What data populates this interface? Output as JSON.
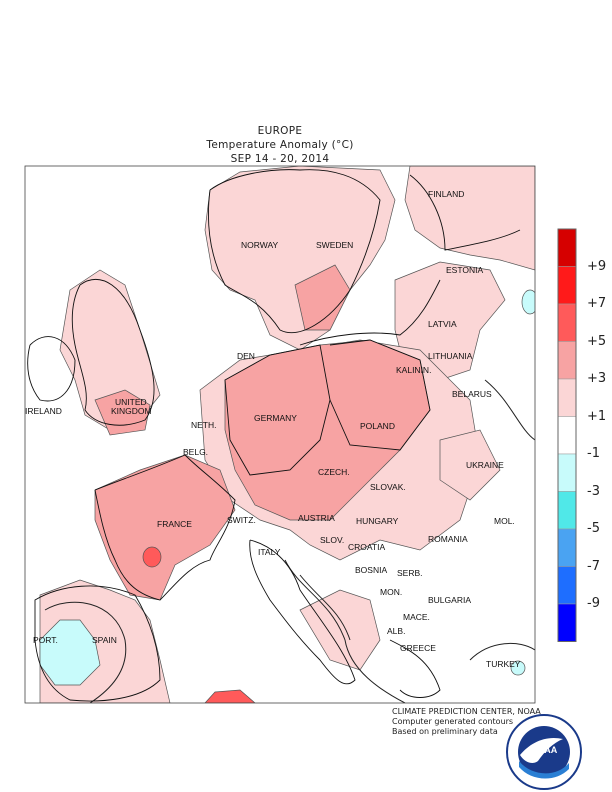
{
  "header": {
    "region": "EUROPE",
    "variable": "Temperature Anomaly (°C)",
    "period": "SEP 14 - 20, 2014"
  },
  "legend": {
    "labels": [
      "+9",
      "+7",
      "+5",
      "+3",
      "+1",
      "-1",
      "-3",
      "-5",
      "-7",
      "-9"
    ],
    "colors": [
      "#d60000",
      "#ff1a1a",
      "#ff5a5a",
      "#f7a3a3",
      "#fbd6d6",
      "#ffffff",
      "#c8fbfb",
      "#50e8e8",
      "#4aa3f2",
      "#1e6eff",
      "#0000ff"
    ]
  },
  "countries": {
    "finland": "FINLAND",
    "norway": "NORWAY",
    "sweden": "SWEDEN",
    "estonia": "ESTONIA",
    "latvia": "LATVIA",
    "lithuania": "LITHUANIA",
    "kalinin": "KALININ.",
    "denmark": "DEN",
    "ireland": "IRELAND",
    "united": "UNITED",
    "kingdom": "KINGDOM",
    "belarus": "BELARUS",
    "neth": "NETH.",
    "germany": "GERMANY",
    "poland": "POLAND",
    "belg": "BELG.",
    "ukraine": "UKRAINE",
    "czech": "CZECH.",
    "slovak": "SLOVAK.",
    "france": "FRANCE",
    "switz": "SWITZ.",
    "austria": "AUSTRIA",
    "hungary": "HUNGARY",
    "mol": "MOL.",
    "romania": "ROMANIA",
    "italy": "ITALY",
    "slov": "SLOV.",
    "croatia": "CROATIA",
    "bosnia": "BOSNIA",
    "serb": "SERB.",
    "mon": "MON.",
    "bulgaria": "BULGARIA",
    "port": "PORT.",
    "spain": "SPAIN",
    "mace": "MACE.",
    "alb": "ALB.",
    "greece": "GREECE",
    "turkey": "TURKEY"
  },
  "credits": {
    "line1": "CLIMATE PREDICTION CENTER, NOAA",
    "line2": "Computer generated contours",
    "line3": "Based on preliminary data"
  },
  "logo": {
    "text": "NOAA",
    "ring_text": "NATIONAL OCEANIC AND ATMOSPHERIC ADMINISTRATION · U.S. DEPARTMENT OF COMMERCE"
  }
}
